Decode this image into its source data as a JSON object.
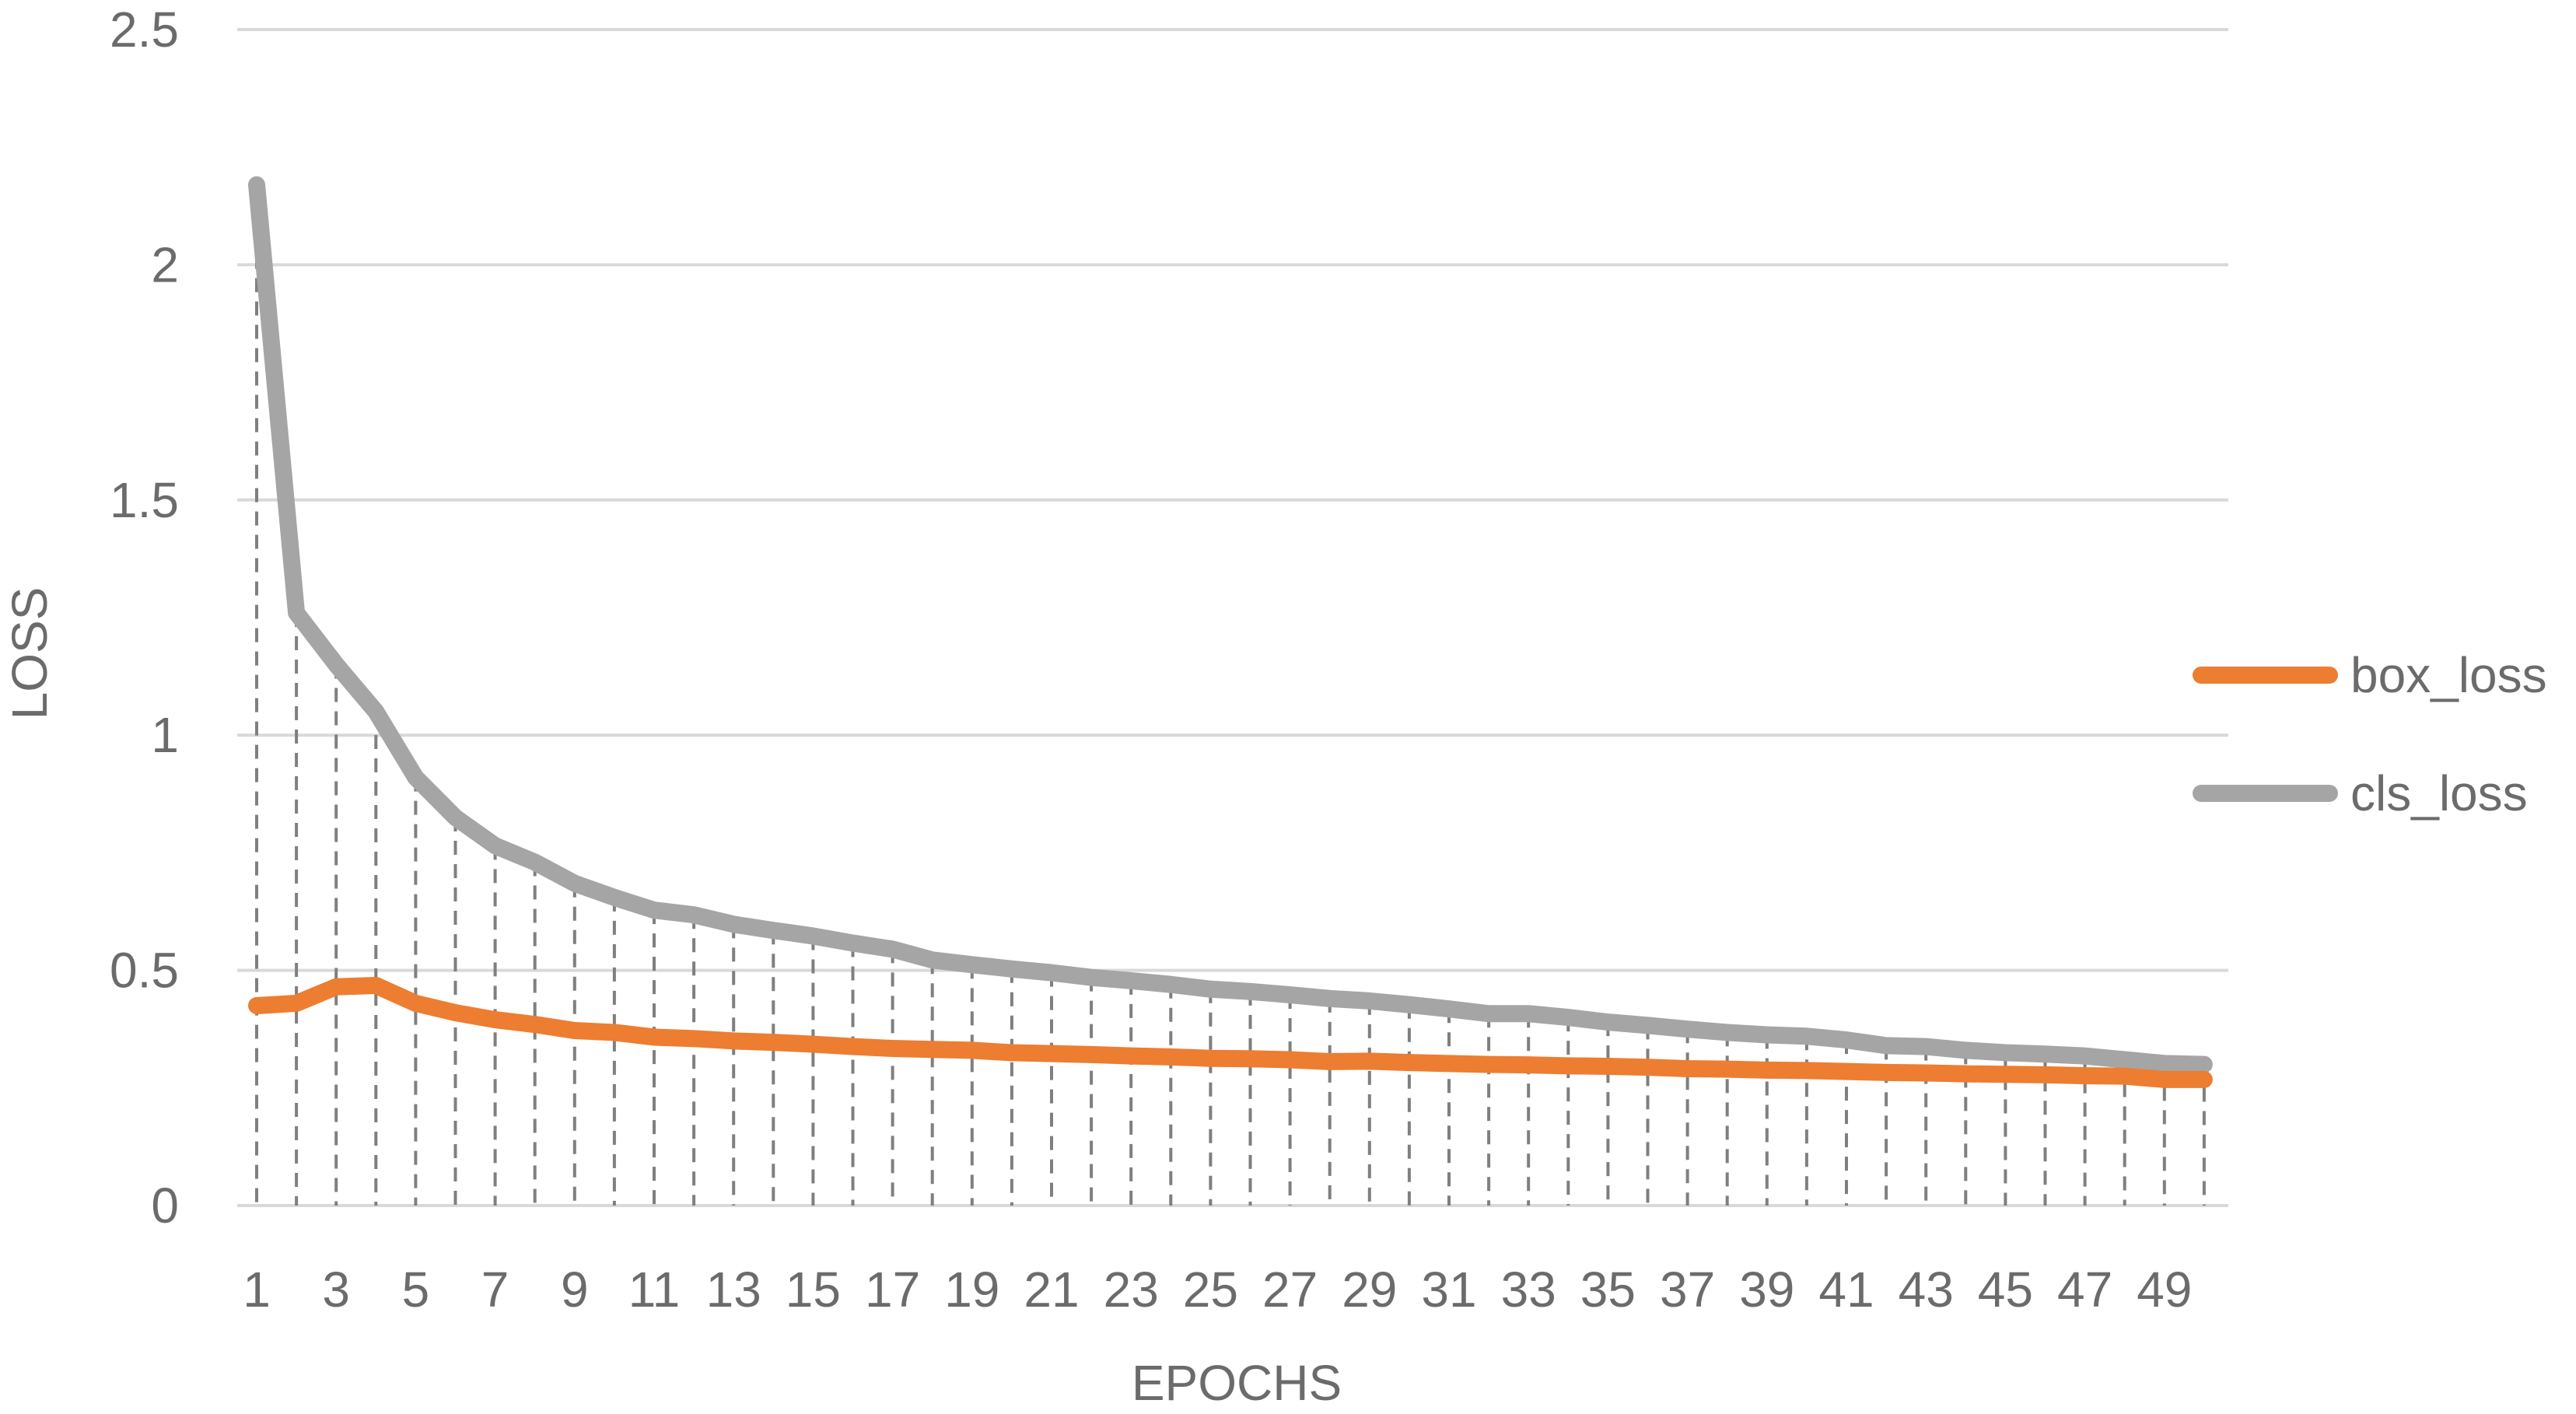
{
  "chart_data": {
    "type": "line",
    "xlabel": "EPOCHS",
    "ylabel": "LOSS",
    "ylim": [
      0,
      2.5
    ],
    "y_ticks": [
      "0",
      "0.5",
      "1",
      "1.5",
      "2",
      "2.5"
    ],
    "x_tick_labels": [
      "1",
      "3",
      "5",
      "7",
      "9",
      "11",
      "13",
      "15",
      "17",
      "19",
      "21",
      "23",
      "25",
      "27",
      "29",
      "31",
      "33",
      "35",
      "37",
      "39",
      "41",
      "43",
      "45",
      "47",
      "49"
    ],
    "grid": "horizontal",
    "drop_lines": true,
    "legend_position": "right",
    "x": [
      1,
      2,
      3,
      4,
      5,
      6,
      7,
      8,
      9,
      10,
      11,
      12,
      13,
      14,
      15,
      16,
      17,
      18,
      19,
      20,
      21,
      22,
      23,
      24,
      25,
      26,
      27,
      28,
      29,
      30,
      31,
      32,
      33,
      34,
      35,
      36,
      37,
      38,
      39,
      40,
      41,
      42,
      43,
      44,
      45,
      46,
      47,
      48,
      49,
      50
    ],
    "series": [
      {
        "name": "box_loss",
        "color": "#ED7D31",
        "values": [
          0.425,
          0.43,
          0.465,
          0.468,
          0.43,
          0.41,
          0.395,
          0.385,
          0.372,
          0.368,
          0.358,
          0.355,
          0.35,
          0.347,
          0.343,
          0.338,
          0.334,
          0.332,
          0.33,
          0.325,
          0.323,
          0.321,
          0.318,
          0.316,
          0.313,
          0.312,
          0.31,
          0.306,
          0.307,
          0.304,
          0.302,
          0.3,
          0.299,
          0.297,
          0.296,
          0.294,
          0.291,
          0.29,
          0.288,
          0.287,
          0.285,
          0.283,
          0.282,
          0.28,
          0.279,
          0.278,
          0.276,
          0.275,
          0.268,
          0.268
        ]
      },
      {
        "name": "cls_loss",
        "color": "#A5A5A5",
        "values": [
          2.17,
          1.26,
          1.15,
          1.05,
          0.91,
          0.825,
          0.765,
          0.73,
          0.685,
          0.655,
          0.628,
          0.618,
          0.598,
          0.585,
          0.573,
          0.558,
          0.545,
          0.522,
          0.512,
          0.503,
          0.495,
          0.485,
          0.478,
          0.47,
          0.46,
          0.455,
          0.448,
          0.44,
          0.435,
          0.427,
          0.418,
          0.408,
          0.408,
          0.4,
          0.39,
          0.383,
          0.375,
          0.368,
          0.363,
          0.36,
          0.352,
          0.34,
          0.338,
          0.33,
          0.325,
          0.322,
          0.318,
          0.31,
          0.302,
          0.3
        ]
      }
    ]
  }
}
